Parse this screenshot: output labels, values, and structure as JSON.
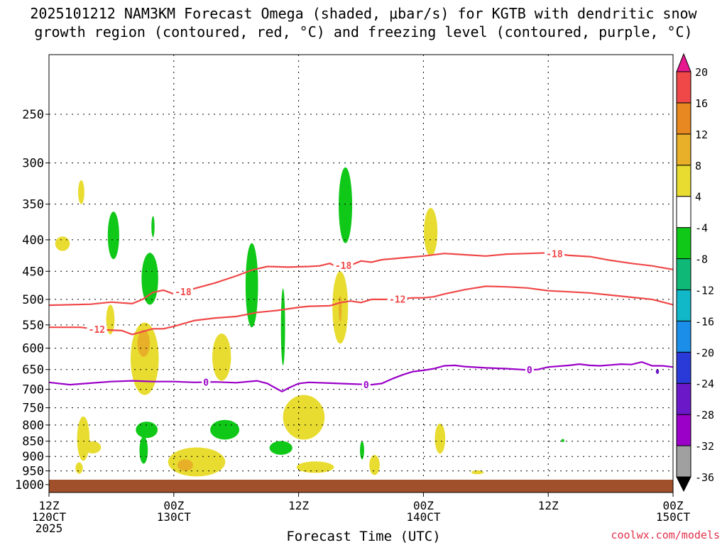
{
  "title": {
    "line1": "2025101212 NAM3KM Forecast Omega (shaded, μbar/s) for KGTB with dendritic snow",
    "line2": "growth region (contoured, red, °C) and freezing level (contoured, purple, °C)"
  },
  "credit": "coolwx.com/models",
  "chart_data": {
    "type": "heatmap",
    "xlabel": "Forecast Time (UTC)",
    "ylabel": "",
    "y_scale": "log",
    "ylim": [
      1030,
      200
    ],
    "y_ticks": [
      250,
      300,
      350,
      400,
      450,
      500,
      550,
      600,
      650,
      700,
      750,
      800,
      850,
      900,
      950,
      1000
    ],
    "x_hours_range": [
      0,
      60
    ],
    "x_ticks": [
      {
        "hour": 0,
        "lines": [
          "12Z",
          "120CT",
          "2025"
        ]
      },
      {
        "hour": 12,
        "lines": [
          "00Z",
          "130CT"
        ]
      },
      {
        "hour": 24,
        "lines": [
          "12Z"
        ]
      },
      {
        "hour": 36,
        "lines": [
          "00Z",
          "140CT"
        ]
      },
      {
        "hour": 48,
        "lines": [
          "12Z"
        ]
      },
      {
        "hour": 60,
        "lines": [
          "00Z",
          "150CT"
        ]
      }
    ],
    "colorbar": {
      "levels": [
        -36,
        -32,
        -28,
        -24,
        -20,
        -16,
        -12,
        -8,
        -4,
        4,
        8,
        12,
        16,
        20
      ],
      "colors": [
        "#000000",
        "#a0a0a0",
        "#9a00c8",
        "#6a18c8",
        "#2a3ad8",
        "#1a8ee8",
        "#10b8c8",
        "#10b878",
        "#10c818",
        "#ffffff",
        "#e8dc30",
        "#e8b028",
        "#e88820",
        "#f04848",
        "#e81890"
      ]
    },
    "contours": [
      {
        "name": "-18",
        "color": "#f04848",
        "label_hours": [
          12.9,
          28.3,
          48.6
        ],
        "points": [
          [
            0,
            511
          ],
          [
            4,
            509
          ],
          [
            6,
            505
          ],
          [
            8,
            508
          ],
          [
            9,
            500
          ],
          [
            10,
            487
          ],
          [
            11,
            483
          ],
          [
            12,
            490
          ],
          [
            14,
            480
          ],
          [
            16,
            470
          ],
          [
            18,
            458
          ],
          [
            19.5,
            448
          ],
          [
            20,
            446
          ],
          [
            21,
            442
          ],
          [
            23,
            443
          ],
          [
            25,
            442
          ],
          [
            26,
            441
          ],
          [
            27,
            437
          ],
          [
            27.5,
            441
          ],
          [
            29,
            440
          ],
          [
            30,
            433
          ],
          [
            31,
            435
          ],
          [
            32,
            431
          ],
          [
            34,
            428
          ],
          [
            36,
            425
          ],
          [
            38,
            421
          ],
          [
            40,
            423
          ],
          [
            42,
            425
          ],
          [
            44,
            422
          ],
          [
            46,
            421
          ],
          [
            48,
            420
          ],
          [
            50,
            424
          ],
          [
            52,
            426
          ],
          [
            54,
            432
          ],
          [
            56,
            437
          ],
          [
            58,
            441
          ],
          [
            60,
            447
          ]
        ]
      },
      {
        "name": "-12",
        "color": "#f04848",
        "label_hours": [
          4.6,
          33.5
        ],
        "points": [
          [
            0,
            555
          ],
          [
            3,
            555
          ],
          [
            5,
            560
          ],
          [
            7,
            562
          ],
          [
            8,
            570
          ],
          [
            9,
            564
          ],
          [
            10,
            558
          ],
          [
            11,
            558
          ],
          [
            12,
            553
          ],
          [
            14,
            541
          ],
          [
            16,
            536
          ],
          [
            18,
            533
          ],
          [
            20,
            525
          ],
          [
            22,
            521
          ],
          [
            24,
            515
          ],
          [
            25,
            513
          ],
          [
            27,
            512
          ],
          [
            28,
            506
          ],
          [
            29,
            503
          ],
          [
            30,
            506
          ],
          [
            31,
            500
          ],
          [
            33,
            500
          ],
          [
            35,
            497
          ],
          [
            36,
            497
          ],
          [
            37,
            495
          ],
          [
            38,
            490
          ],
          [
            40,
            482
          ],
          [
            42,
            476
          ],
          [
            44,
            477
          ],
          [
            46,
            479
          ],
          [
            48,
            484
          ],
          [
            50,
            486
          ],
          [
            52,
            488
          ],
          [
            54,
            492
          ],
          [
            56,
            496
          ],
          [
            58,
            500
          ],
          [
            60,
            510
          ]
        ]
      },
      {
        "name": "0",
        "color": "#9a00c8",
        "label_hours": [
          15.1,
          30.5,
          46.2
        ],
        "points": [
          [
            0,
            682
          ],
          [
            2,
            688
          ],
          [
            4,
            684
          ],
          [
            6,
            680
          ],
          [
            8,
            678
          ],
          [
            10,
            680
          ],
          [
            12,
            680
          ],
          [
            14,
            682
          ],
          [
            16,
            681
          ],
          [
            18,
            683
          ],
          [
            20,
            678
          ],
          [
            21,
            685
          ],
          [
            22,
            700
          ],
          [
            22.4,
            706
          ],
          [
            23,
            697
          ],
          [
            24,
            685
          ],
          [
            25,
            682
          ],
          [
            27,
            684
          ],
          [
            29,
            686
          ],
          [
            31,
            688
          ],
          [
            32,
            685
          ],
          [
            33,
            673
          ],
          [
            34,
            663
          ],
          [
            35,
            655
          ],
          [
            36,
            652
          ],
          [
            37,
            648
          ],
          [
            38,
            641
          ],
          [
            39,
            640
          ],
          [
            40,
            643
          ],
          [
            42,
            646
          ],
          [
            44,
            648
          ],
          [
            46,
            651
          ],
          [
            47,
            650
          ],
          [
            48,
            644
          ],
          [
            50,
            640
          ],
          [
            51,
            637
          ],
          [
            52,
            640
          ],
          [
            53,
            641
          ],
          [
            54,
            639
          ],
          [
            55,
            637
          ],
          [
            56,
            638
          ],
          [
            57,
            632
          ],
          [
            58,
            641
          ],
          [
            59,
            641
          ],
          [
            60,
            644
          ]
        ]
      }
    ],
    "shaded_regions": [
      {
        "omega": 6,
        "center": [
          3.1,
          335
        ],
        "size": [
          0.6,
          30
        ]
      },
      {
        "omega": 6,
        "center": [
          1.3,
          406
        ],
        "size": [
          1.4,
          22
        ]
      },
      {
        "omega": -5,
        "center": [
          6.2,
          395
        ],
        "size": [
          1.1,
          70
        ]
      },
      {
        "omega": -5,
        "center": [
          10.0,
          381
        ],
        "size": [
          0.3,
          30
        ]
      },
      {
        "omega": -6,
        "center": [
          9.7,
          465
        ],
        "size": [
          1.6,
          90
        ]
      },
      {
        "omega": 6,
        "center": [
          5.9,
          540
        ],
        "size": [
          0.8,
          60
        ]
      },
      {
        "omega": 6,
        "center": [
          9.2,
          630
        ],
        "size": [
          2.7,
          170
        ]
      },
      {
        "omega": 10,
        "center": [
          9.1,
          590
        ],
        "size": [
          1.2,
          60
        ]
      },
      {
        "omega": 6,
        "center": [
          16.6,
          623
        ],
        "size": [
          1.8,
          110
        ]
      },
      {
        "omega": -6,
        "center": [
          19.5,
          480
        ],
        "size": [
          1.2,
          150
        ]
      },
      {
        "omega": -6,
        "center": [
          22.5,
          560
        ],
        "size": [
          0.4,
          160
        ]
      },
      {
        "omega": -6,
        "center": [
          28.5,
          355
        ],
        "size": [
          1.3,
          100
        ]
      },
      {
        "omega": 6,
        "center": [
          28.0,
          520
        ],
        "size": [
          1.5,
          140
        ]
      },
      {
        "omega": 10,
        "center": [
          28.0,
          518
        ],
        "size": [
          0.3,
          50
        ]
      },
      {
        "omega": 6,
        "center": [
          36.7,
          390
        ],
        "size": [
          1.3,
          70
        ]
      },
      {
        "omega": 6,
        "center": [
          24.5,
          780
        ],
        "size": [
          4.0,
          130
        ]
      },
      {
        "omega": -6,
        "center": [
          16.9,
          815
        ],
        "size": [
          2.8,
          60
        ]
      },
      {
        "omega": -6,
        "center": [
          9.4,
          815
        ],
        "size": [
          2.1,
          50
        ]
      },
      {
        "omega": -6,
        "center": [
          9.1,
          880
        ],
        "size": [
          0.8,
          90
        ]
      },
      {
        "omega": -6,
        "center": [
          22.3,
          872
        ],
        "size": [
          2.2,
          45
        ]
      },
      {
        "omega": -6,
        "center": [
          30.1,
          880
        ],
        "size": [
          0.4,
          60
        ]
      },
      {
        "omega": 6,
        "center": [
          3.3,
          845
        ],
        "size": [
          1.2,
          140
        ]
      },
      {
        "omega": 6,
        "center": [
          4.2,
          870
        ],
        "size": [
          1.6,
          40
        ]
      },
      {
        "omega": 6,
        "center": [
          2.9,
          940
        ],
        "size": [
          0.7,
          40
        ]
      },
      {
        "omega": 6,
        "center": [
          14.2,
          920
        ],
        "size": [
          5.5,
          100
        ]
      },
      {
        "omega": 10,
        "center": [
          13.1,
          930
        ],
        "size": [
          1.5,
          40
        ]
      },
      {
        "omega": 6,
        "center": [
          25.6,
          937
        ],
        "size": [
          3.6,
          40
        ]
      },
      {
        "omega": 6,
        "center": [
          31.3,
          930
        ],
        "size": [
          1.0,
          70
        ]
      },
      {
        "omega": 6,
        "center": [
          37.6,
          843
        ],
        "size": [
          1.0,
          95
        ]
      },
      {
        "omega": 6,
        "center": [
          41.2,
          955
        ],
        "size": [
          1.2,
          14
        ]
      },
      {
        "omega": -6,
        "center": [
          49.4,
          848
        ],
        "size": [
          0.3,
          10
        ]
      },
      {
        "omega": -28,
        "center": [
          58.5,
          655
        ],
        "size": [
          0.3,
          12
        ]
      }
    ]
  }
}
